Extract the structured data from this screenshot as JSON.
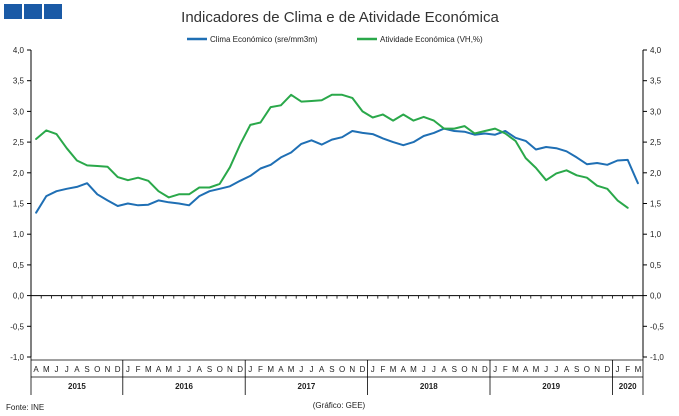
{
  "brand": {
    "color": "#1a5aa6"
  },
  "chart_data": {
    "type": "line",
    "title": "Indicadores de Clima e de Atividade Económica",
    "source": "Fonte: INE",
    "credit": "(Gráfico: GEE)",
    "ylim": [
      -1.0,
      4.0
    ],
    "y_ticks": [
      "-1,0",
      "-0,5",
      "0,0",
      "0,5",
      "1,0",
      "1,5",
      "2,0",
      "2,5",
      "3,0",
      "3,5",
      "4,0"
    ],
    "y_tick_values": [
      -1.0,
      -0.5,
      0.0,
      0.5,
      1.0,
      1.5,
      2.0,
      2.5,
      3.0,
      3.5,
      4.0
    ],
    "grid": false,
    "legend_position": "top",
    "month_labels": [
      "A",
      "M",
      "J",
      "J",
      "A",
      "S",
      "O",
      "N",
      "D",
      "J",
      "F",
      "M",
      "A",
      "M",
      "J",
      "J",
      "A",
      "S",
      "O",
      "N",
      "D",
      "J",
      "F",
      "M",
      "A",
      "M",
      "J",
      "J",
      "A",
      "S",
      "O",
      "N",
      "D",
      "J",
      "F",
      "M",
      "A",
      "M",
      "J",
      "J",
      "A",
      "S",
      "O",
      "N",
      "D",
      "J",
      "F",
      "M",
      "A",
      "M",
      "J",
      "J",
      "A",
      "S",
      "O",
      "N",
      "D",
      "J",
      "F",
      "M"
    ],
    "years": [
      {
        "label": "2015",
        "start": 0,
        "end": 8
      },
      {
        "label": "2016",
        "start": 9,
        "end": 20
      },
      {
        "label": "2017",
        "start": 21,
        "end": 32
      },
      {
        "label": "2018",
        "start": 33,
        "end": 44
      },
      {
        "label": "2019",
        "start": 45,
        "end": 56
      },
      {
        "label": "2020",
        "start": 57,
        "end": 59
      }
    ],
    "series": [
      {
        "name": "Clima Económico (sre/mm3m)",
        "color": "#1f6fb4",
        "values": [
          1.35,
          1.62,
          1.7,
          1.74,
          1.77,
          1.83,
          1.65,
          1.55,
          1.46,
          1.5,
          1.47,
          1.48,
          1.55,
          1.52,
          1.5,
          1.47,
          1.62,
          1.7,
          1.74,
          1.78,
          1.87,
          1.95,
          2.07,
          2.13,
          2.25,
          2.33,
          2.47,
          2.53,
          2.46,
          2.54,
          2.58,
          2.68,
          2.65,
          2.63,
          2.56,
          2.5,
          2.45,
          2.5,
          2.6,
          2.65,
          2.72,
          2.68,
          2.67,
          2.62,
          2.64,
          2.62,
          2.68,
          2.57,
          2.52,
          2.38,
          2.42,
          2.4,
          2.35,
          2.25,
          2.14,
          2.16,
          2.13,
          2.2,
          2.21,
          1.83
        ]
      },
      {
        "name": "Atividade Económica (VH,%)",
        "color": "#2aa84a",
        "values": [
          2.55,
          2.69,
          2.63,
          2.4,
          2.2,
          2.12,
          2.11,
          2.1,
          1.93,
          1.88,
          1.92,
          1.87,
          1.7,
          1.6,
          1.65,
          1.65,
          1.76,
          1.76,
          1.82,
          2.09,
          2.46,
          2.78,
          2.82,
          3.07,
          3.1,
          3.27,
          3.16,
          3.17,
          3.18,
          3.27,
          3.27,
          3.22,
          3.0,
          2.9,
          2.95,
          2.85,
          2.95,
          2.85,
          2.91,
          2.85,
          2.72,
          2.72,
          2.76,
          2.64,
          2.68,
          2.72,
          2.64,
          2.52,
          2.24,
          2.08,
          1.88,
          1.99,
          2.04,
          1.96,
          1.92,
          1.79,
          1.74,
          1.55,
          1.43,
          null
        ]
      }
    ]
  }
}
